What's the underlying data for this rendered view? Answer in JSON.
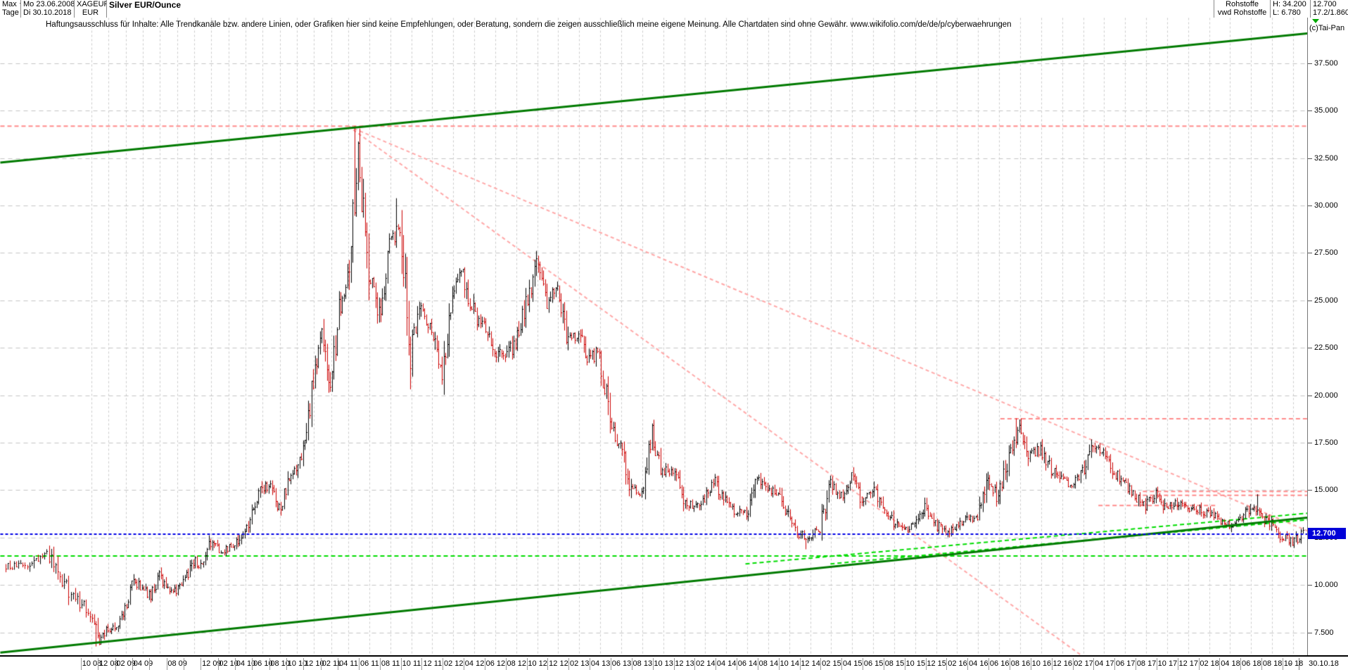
{
  "header": {
    "range_selector": "Max",
    "period_selector": "Tage",
    "date_from": "Mo 23.06.2008",
    "date_to": "Di 30.10.2018",
    "symbol": "XAGEUR",
    "currency": "EUR",
    "title": "Silver EUR/Ounce",
    "category": "Rohstoffe",
    "feed": "vwd Rohstoffe",
    "high_label": "H: 34.200",
    "low_label": "L: 6.780",
    "last_price": "12.700",
    "change": "17.2/1.860"
  },
  "icons": {
    "dropdown": "▼"
  },
  "disclaimer": "Haftungsausschluss für Inhalte: Alle Trendkanäle bzw. andere Linien, oder Grafiken hier sind keine Empfehlungen, oder Beratung, sondern die zeigen ausschließlich meine eigene Meinung. Alle Chartdaten sind ohne Gewähr.  www.wikifolio.com/de/de/p/cyberwaehrungen",
  "axis": {
    "copyright": "(c)Tai-Pan",
    "last_price_label": "12.700",
    "end_date": "30.10.18",
    "dash": "-"
  },
  "chart_data": {
    "type": "bar",
    "title": "Silver EUR/Ounce",
    "ylabel": "EUR",
    "interval": "monthly",
    "start_month": "2008-06",
    "end_month": "2018-10",
    "high": 34.2,
    "low": 6.78,
    "last_close": 12.7,
    "ylim": [
      6.3,
      39.9
    ],
    "grid": true,
    "bar_color_up": "#000000",
    "bar_color_down": "#cc0000",
    "close": [
      11.0,
      11.6,
      9.6,
      8.6,
      7.0,
      7.7,
      7.9,
      8.7,
      10.2,
      9.9,
      9.4,
      10.4,
      9.9,
      9.7,
      10.3,
      11.3,
      11.0,
      12.3,
      11.8,
      11.9,
      12.2,
      12.9,
      13.9,
      15.1,
      15.3,
      13.9,
      15.3,
      16.1,
      17.5,
      21.0,
      23.1,
      20.6,
      24.5,
      26.6,
      32.5,
      26.8,
      24.3,
      28.0,
      29.0,
      22.4,
      24.6,
      23.6,
      21.4,
      25.6,
      26.4,
      24.3,
      23.6,
      22.4,
      21.9,
      22.9,
      24.9,
      26.8,
      24.9,
      25.6,
      22.9,
      23.2,
      21.8,
      22.4,
      18.4,
      17.3,
      15.0,
      14.9,
      18.0,
      16.0,
      16.1,
      14.6,
      14.1,
      14.5,
      15.4,
      14.4,
      13.9,
      13.8,
      15.5,
      15.1,
      14.7,
      13.6,
      12.7,
      12.5,
      13.0,
      15.3,
      14.7,
      15.6,
      14.5,
      15.2,
      14.0,
      13.3,
      12.9,
      13.1,
      14.0,
      13.2,
      12.8,
      13.1,
      13.6,
      13.5,
      15.7,
      14.5,
      16.9,
      18.2,
      16.8,
      17.2,
      16.1,
      15.5,
      15.2,
      15.9,
      17.2,
      17.0,
      15.9,
      15.4,
      14.7,
      14.2,
      14.8,
      14.0,
      14.3,
      14.1,
      14.0,
      13.8,
      13.4,
      13.1,
      13.5,
      14.0,
      13.7,
      13.2,
      12.6,
      12.3,
      12.7
    ],
    "extremes": [
      {
        "i": 4,
        "low": 6.78
      },
      {
        "i": 34,
        "high": 34.2
      },
      {
        "i": 38,
        "high": 30.4
      },
      {
        "i": 77,
        "low": 11.9
      },
      {
        "i": 97,
        "high": 18.8
      },
      {
        "i": 120,
        "high": 14.8
      },
      {
        "i": 123,
        "low": 12.1
      }
    ],
    "x_anchors": [
      [
        0,
        6
      ],
      [
        4,
        130
      ],
      [
        34,
        495
      ],
      [
        124,
        1838
      ]
    ],
    "yticks": [
      {
        "p": 37.5,
        "label": "37.500"
      },
      {
        "p": 35.0,
        "label": "35.000"
      },
      {
        "p": 32.5,
        "label": "32.500"
      },
      {
        "p": 30.0,
        "label": "30.000"
      },
      {
        "p": 27.5,
        "label": "27.500"
      },
      {
        "p": 25.0,
        "label": "25.000"
      },
      {
        "p": 22.5,
        "label": "22.500"
      },
      {
        "p": 20.0,
        "label": "20.000"
      },
      {
        "p": 17.5,
        "label": "17.500"
      },
      {
        "p": 15.0,
        "label": "15.000"
      },
      {
        "p": 12.5,
        "label": "12.500"
      },
      {
        "p": 10.0,
        "label": "10.000"
      },
      {
        "p": 7.5,
        "label": "7.500"
      }
    ],
    "xticks": [
      {
        "m": 4,
        "label": "10 08"
      },
      {
        "m": 6,
        "label": "12 08"
      },
      {
        "m": 8,
        "label": "02 09"
      },
      {
        "m": 10,
        "label": "04 09"
      },
      {
        "m": 12,
        "label": ""
      },
      {
        "m": 14,
        "label": "08 09"
      },
      {
        "m": 16,
        "label": ""
      },
      {
        "m": 18,
        "label": "12 09"
      },
      {
        "m": 20,
        "label": "02 10"
      },
      {
        "m": 22,
        "label": "04 10"
      },
      {
        "m": 24,
        "label": "06 10"
      },
      {
        "m": 26,
        "label": "08 10"
      },
      {
        "m": 28,
        "label": "10 10"
      },
      {
        "m": 30,
        "label": "12 10"
      },
      {
        "m": 32,
        "label": "02 11"
      },
      {
        "m": 34,
        "label": "04 11"
      },
      {
        "m": 36,
        "label": "06 11"
      },
      {
        "m": 38,
        "label": "08 11"
      },
      {
        "m": 40,
        "label": "10 11"
      },
      {
        "m": 42,
        "label": "12 11"
      },
      {
        "m": 44,
        "label": "02 12"
      },
      {
        "m": 46,
        "label": "04 12"
      },
      {
        "m": 48,
        "label": "06 12"
      },
      {
        "m": 50,
        "label": "08 12"
      },
      {
        "m": 52,
        "label": "10 12"
      },
      {
        "m": 54,
        "label": "12 12"
      },
      {
        "m": 56,
        "label": "02 13"
      },
      {
        "m": 58,
        "label": "04 13"
      },
      {
        "m": 60,
        "label": "06 13"
      },
      {
        "m": 62,
        "label": "08 13"
      },
      {
        "m": 64,
        "label": "10 13"
      },
      {
        "m": 66,
        "label": "12 13"
      },
      {
        "m": 68,
        "label": "02 14"
      },
      {
        "m": 70,
        "label": "04 14"
      },
      {
        "m": 72,
        "label": "06 14"
      },
      {
        "m": 74,
        "label": "08 14"
      },
      {
        "m": 76,
        "label": "10 14"
      },
      {
        "m": 78,
        "label": "12 14"
      },
      {
        "m": 80,
        "label": "02 15"
      },
      {
        "m": 82,
        "label": "04 15"
      },
      {
        "m": 84,
        "label": "06 15"
      },
      {
        "m": 86,
        "label": "08 15"
      },
      {
        "m": 88,
        "label": "10 15"
      },
      {
        "m": 90,
        "label": "12 15"
      },
      {
        "m": 92,
        "label": "02 16"
      },
      {
        "m": 94,
        "label": "04 16"
      },
      {
        "m": 96,
        "label": "06 16"
      },
      {
        "m": 98,
        "label": "08 16"
      },
      {
        "m": 100,
        "label": "10 16"
      },
      {
        "m": 102,
        "label": "12 16"
      },
      {
        "m": 104,
        "label": "02 17"
      },
      {
        "m": 106,
        "label": "04 17"
      },
      {
        "m": 108,
        "label": "06 17"
      },
      {
        "m": 110,
        "label": "08 17"
      },
      {
        "m": 112,
        "label": "10 17"
      },
      {
        "m": 114,
        "label": "12 17"
      },
      {
        "m": 116,
        "label": "02 18"
      },
      {
        "m": 118,
        "label": "04 18"
      },
      {
        "m": 120,
        "label": "06 18"
      },
      {
        "m": 122,
        "label": "08 18"
      },
      {
        "m": 124,
        "label": "10 18"
      }
    ],
    "trendlines": [
      {
        "name": "upper-channel-line",
        "layer": 2,
        "color": "#007a00",
        "width": 3,
        "dash": null,
        "x1": 0.0,
        "p1": 32.28,
        "x2": 1.0,
        "p2": 39.09
      },
      {
        "name": "lower-channel-line",
        "layer": 2,
        "color": "#007a00",
        "width": 3,
        "dash": null,
        "x1": 0.0,
        "p1": 6.46,
        "x2": 1.0,
        "p2": 13.57
      },
      {
        "name": "alltime-high-line",
        "layer": 1,
        "color": "#ff8c8c",
        "width": 2,
        "dash": [
          6,
          4
        ],
        "x1": 0.0,
        "p1": 34.2,
        "x2": 1.0,
        "p2": 34.2
      },
      {
        "name": "fan-line-1",
        "layer": 1,
        "color": "#ffa8a8",
        "width": 2,
        "dash": [
          5,
          4
        ],
        "x1": 0.266,
        "p1": 34.2,
        "x2": 1.0,
        "p2": 12.87
      },
      {
        "name": "fan-line-2",
        "layer": 1,
        "color": "#ffa8a8",
        "width": 2,
        "dash": [
          5,
          4
        ],
        "x1": 0.266,
        "p1": 34.2,
        "x2": 0.827,
        "p2": 6.31
      },
      {
        "name": "resistance-2016-high",
        "layer": 1,
        "color": "#ff8c8c",
        "width": 2,
        "dash": [
          6,
          4
        ],
        "x1": 0.765,
        "p1": 18.78,
        "x2": 1.0,
        "p2": 18.78
      },
      {
        "name": "level-14-95",
        "layer": 1,
        "color": "#ff8c8c",
        "width": 2,
        "dash": [
          6,
          4
        ],
        "x1": 0.874,
        "p1": 14.95,
        "x2": 1.0,
        "p2": 14.95
      },
      {
        "name": "level-14-75",
        "layer": 1,
        "color": "#ff8c8c",
        "width": 2,
        "dash": [
          6,
          4
        ],
        "x1": 0.874,
        "p1": 14.75,
        "x2": 1.0,
        "p2": 14.75
      },
      {
        "name": "level-14-20",
        "layer": 1,
        "color": "#ff8c8c",
        "width": 2,
        "dash": [
          6,
          4
        ],
        "x1": 0.84,
        "p1": 14.21,
        "x2": 0.93,
        "p2": 14.21
      },
      {
        "name": "support-horizontal",
        "layer": 1,
        "color": "#00dd00",
        "width": 2,
        "dash": [
          6,
          4
        ],
        "x1": 0.0,
        "p1": 11.55,
        "x2": 1.0,
        "p2": 11.55
      },
      {
        "name": "support-diagonal-1",
        "layer": 1,
        "color": "#00dd00",
        "width": 2,
        "dash": [
          6,
          4
        ],
        "x1": 0.57,
        "p1": 11.13,
        "x2": 1.0,
        "p2": 13.8
      },
      {
        "name": "support-diagonal-2",
        "layer": 1,
        "color": "#00dd00",
        "width": 2,
        "dash": [
          6,
          4
        ],
        "x1": 0.635,
        "p1": 11.13,
        "x2": 1.0,
        "p2": 13.46
      },
      {
        "name": "last-price-line",
        "layer": 2,
        "color": "#0000e6",
        "width": 2,
        "dash": [
          4,
          3
        ],
        "x1": 0.0,
        "p1": 12.7,
        "x2": 1.0,
        "p2": 12.7
      }
    ]
  }
}
